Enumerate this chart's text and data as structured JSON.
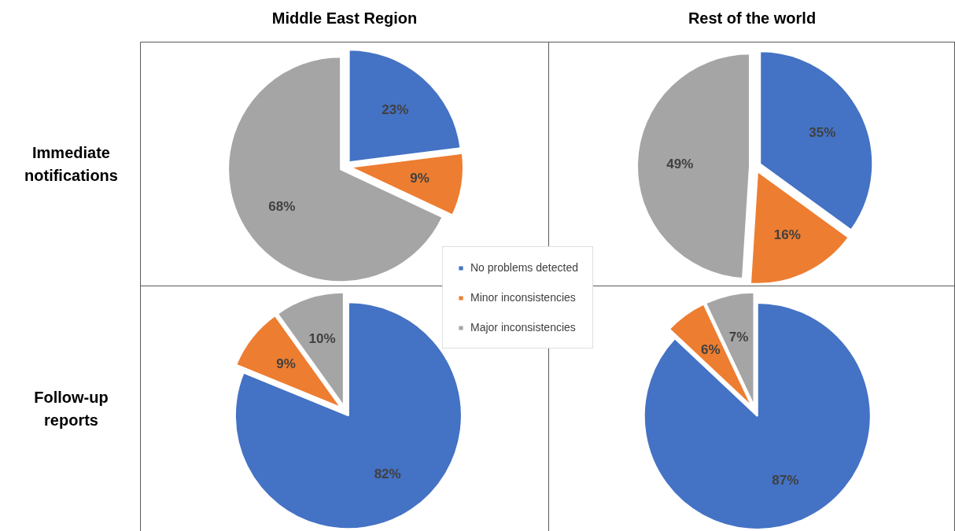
{
  "chart_data": [
    {
      "type": "pie",
      "title": "Middle East Region",
      "ylabel": "Immediate notifications",
      "categories": [
        "No problems detected",
        "Minor inconsistencies",
        "Major inconsistencies"
      ],
      "values": [
        23,
        9,
        68
      ],
      "value_labels": [
        "23%",
        "9%",
        "68%"
      ],
      "colors": [
        "#4472c4",
        "#ed7d31",
        "#a5a5a5"
      ],
      "legend": "bottom right"
    },
    {
      "type": "pie",
      "title": "Rest of the world",
      "values": [
        35,
        16,
        49
      ],
      "value_labels": [
        "35%",
        "16%",
        "49%"
      ],
      "colors": [
        "#4472c4",
        "#ed7d31",
        "#a5a5a5"
      ]
    },
    {
      "type": "pie",
      "ylabel": "Follow-up reports",
      "values": [
        82,
        9,
        10
      ],
      "value_labels": [
        "82%",
        "9%",
        "10%"
      ],
      "colors": [
        "#4472c4",
        "#ed7d31",
        "#a5a5a5"
      ]
    },
    {
      "type": "pie",
      "values": [
        87,
        6,
        7
      ],
      "value_labels": [
        "87%",
        "6%",
        "7%"
      ],
      "colors": [
        "#4472c4",
        "#ed7d31",
        "#a5a5a5"
      ]
    }
  ]
}
